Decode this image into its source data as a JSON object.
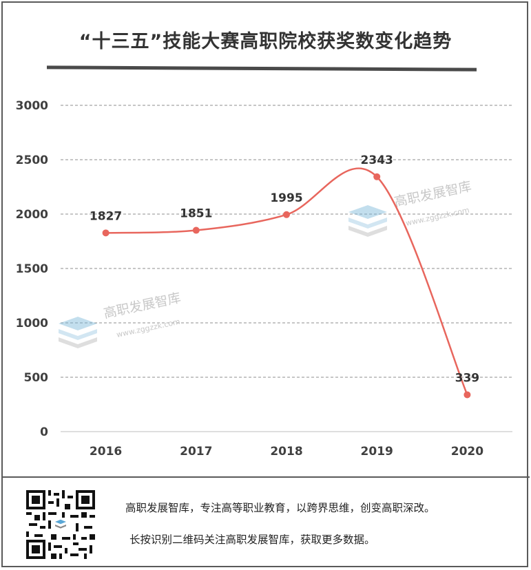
{
  "chart_data": {
    "type": "line",
    "title": "“十三五”技能大赛高职院校获奖数变化趋势",
    "categories": [
      "2016",
      "2017",
      "2018",
      "2019",
      "2020"
    ],
    "series": [
      {
        "values": [
          1827,
          1851,
          1995,
          2343,
          339
        ]
      }
    ],
    "data_labels": [
      "1827",
      "1851",
      "1995",
      "2343",
      "339"
    ],
    "y_ticks": [
      "0",
      "500",
      "1000",
      "1500",
      "2000",
      "2500",
      "3000"
    ],
    "ylim": [
      0,
      3000
    ],
    "grid": true,
    "line_color": "#e8665d",
    "smooth": true
  },
  "watermark": {
    "text": "高职发展智库",
    "url": "www.zggzzk.com"
  },
  "footer": {
    "line1": "高职发展智库，专注高等职业教育，以跨界思维，创变高职深改。",
    "line2": "长按识别二维码关注高职发展智库，获取更多数据。"
  }
}
